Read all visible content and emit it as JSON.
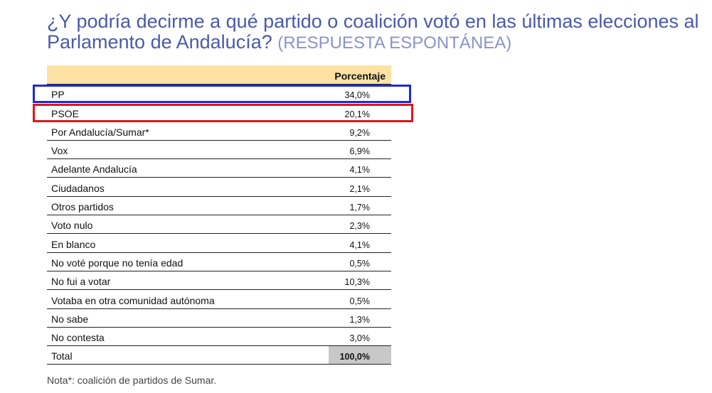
{
  "question": {
    "main": "¿Y podría decirme a qué partido o coalición votó en las últimas elecciones al Parlamento de Andalucía?",
    "qualifier": "(RESPUESTA ESPONTÁNEA)"
  },
  "table": {
    "column_header": "Porcentaje",
    "rows": [
      {
        "label": "PP",
        "value": "34,0%"
      },
      {
        "label": "PSOE",
        "value": "20,1%"
      },
      {
        "label": "Por Andalucía/Sumar*",
        "value": "9,2%"
      },
      {
        "label": "Vox",
        "value": "6,9%"
      },
      {
        "label": "Adelante Andalucía",
        "value": "4,1%"
      },
      {
        "label": "Ciudadanos",
        "value": "2,1%"
      },
      {
        "label": "Otros partidos",
        "value": "1,7%"
      },
      {
        "label": "Voto nulo",
        "value": "2,3%"
      },
      {
        "label": "En blanco",
        "value": "4,1%"
      },
      {
        "label": "No voté porque no tenía edad",
        "value": "0,5%"
      },
      {
        "label": "No fui a votar",
        "value": "10,3%"
      },
      {
        "label": "Votaba en otra comunidad autónoma",
        "value": "0,5%"
      },
      {
        "label": "No sabe",
        "value": "1,3%"
      },
      {
        "label": "No contesta",
        "value": "3,0%"
      }
    ],
    "total": {
      "label": "Total",
      "value": "100,0%"
    }
  },
  "note": "Nota*: coalición de partidos de Sumar.",
  "colors": {
    "title": "#4a5aa8",
    "header_bg": "#fde2a4",
    "total_bg": "#c8c8c8",
    "highlight_pp": "#1e2ad8",
    "highlight_psoe": "#e01616"
  }
}
